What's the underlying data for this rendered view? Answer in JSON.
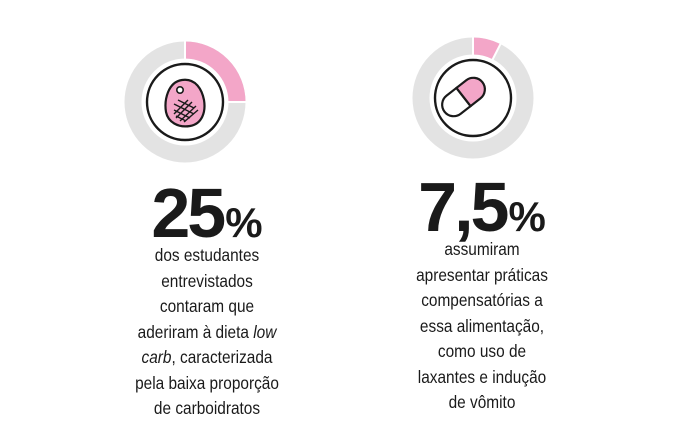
{
  "colors": {
    "ring": "#e3e3e3",
    "accent": "#f3a6c8",
    "ink": "#1a1a1a",
    "background": "#ffffff"
  },
  "chart_data": [
    {
      "type": "pie",
      "value": 25,
      "unit": "%",
      "value_label": "25",
      "icon": "steak-icon",
      "description_lines": [
        [
          {
            "text": "dos estudantes"
          }
        ],
        [
          {
            "text": "entrevistados"
          }
        ],
        [
          {
            "text": "contaram que"
          }
        ],
        [
          {
            "text": "aderiram à dieta "
          },
          {
            "text": "low",
            "italic": true
          }
        ],
        [
          {
            "text": "carb",
            "italic": true
          },
          {
            "text": ", caracterizada"
          }
        ],
        [
          {
            "text": "pela baixa proporção"
          }
        ],
        [
          {
            "text": "de carboidratos"
          }
        ]
      ]
    },
    {
      "type": "pie",
      "value": 7.5,
      "unit": "%",
      "value_label": "7,5",
      "icon": "pill-capsule-icon",
      "description_lines": [
        [
          {
            "text": "assumiram"
          }
        ],
        [
          {
            "text": "apresentar práticas"
          }
        ],
        [
          {
            "text": "compensatórias a"
          }
        ],
        [
          {
            "text": "essa alimentação,"
          }
        ],
        [
          {
            "text": "como uso de"
          }
        ],
        [
          {
            "text": "laxantes e indução"
          }
        ],
        [
          {
            "text": "de vômito"
          }
        ]
      ]
    }
  ]
}
